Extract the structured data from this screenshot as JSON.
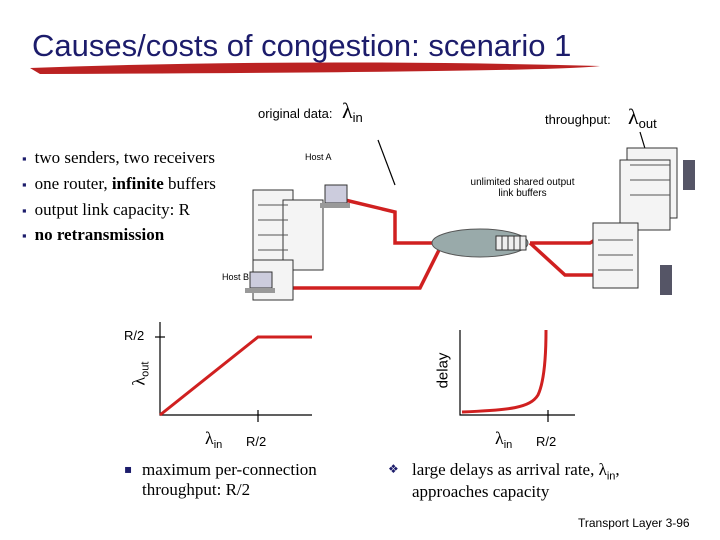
{
  "title": "Causes/costs of congestion: scenario 1",
  "bullets": [
    [
      "two senders, two receivers"
    ],
    [
      "one router, ",
      "infinite",
      " buffers"
    ],
    [
      "output link capacity: R"
    ],
    [
      "no retransmission"
    ]
  ],
  "diagram": {
    "original_data": "original data:",
    "lambda_in": {
      "symbol": "λ",
      "sub": "in"
    },
    "throughput": "throughput:",
    "lambda_out": {
      "symbol": "λ",
      "sub": "out"
    },
    "host_a": "Host A",
    "host_b": "Host B",
    "buffer_note": "unlimited shared output link buffers"
  },
  "plot_throughput": {
    "y_tick": "R/2",
    "y_label": {
      "symbol": "λ",
      "sub": "out"
    },
    "x_label": {
      "symbol": "λ",
      "sub": "in"
    },
    "x_tick": "R/2",
    "caption": "maximum per-connection throughput: R/2"
  },
  "plot_delay": {
    "y_label": "delay",
    "x_label": {
      "symbol": "λ",
      "sub": "in"
    },
    "x_tick": "R/2",
    "caption": [
      "large delays as arrival rate, ",
      "λ",
      "in",
      ", approaches capacity"
    ]
  },
  "footer": "Transport Layer 3-96"
}
